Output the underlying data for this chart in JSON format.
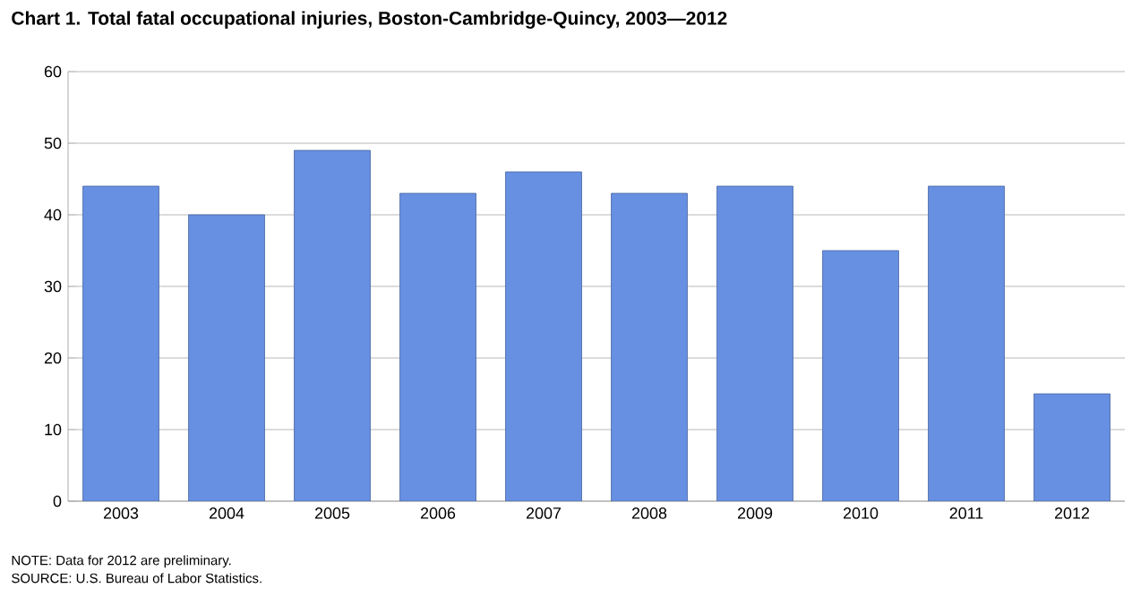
{
  "chart_data": {
    "type": "bar",
    "title": "Chart 1. Total fatal occupational injuries, Boston-Cambridge-Quincy,  2003—2012",
    "categories": [
      "2003",
      "2004",
      "2005",
      "2006",
      "2007",
      "2008",
      "2009",
      "2010",
      "2011",
      "2012"
    ],
    "values": [
      44,
      40,
      49,
      43,
      46,
      43,
      44,
      35,
      44,
      15
    ],
    "color": "#6790e3",
    "ylim": [
      0,
      60
    ],
    "yticks": [
      0,
      10,
      20,
      30,
      40,
      50,
      60
    ],
    "grid": "y",
    "annotations": [
      "NOTE: Data for 2012 are preliminary.",
      "SOURCE: U.S. Bureau of Labor Statistics."
    ]
  }
}
